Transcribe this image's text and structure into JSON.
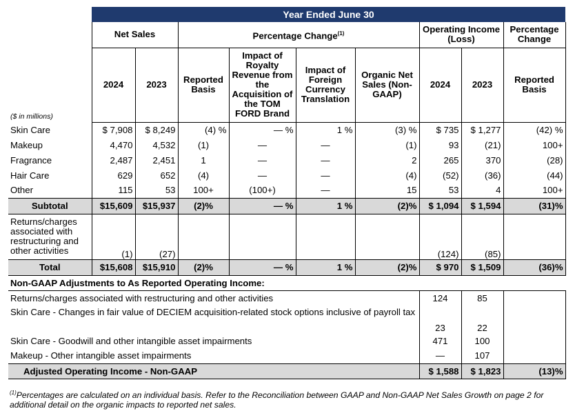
{
  "header": {
    "year_banner": "Year Ended June 30",
    "net_sales": "Net Sales",
    "pct_change": "Percentage Change",
    "pct_change_sup": "(1)",
    "op_income": "Operating Income (Loss)",
    "pct_change_right": "Percentage Change",
    "units": "($ in millions)",
    "col_2024": "2024",
    "col_2023": "2023",
    "reported_basis": "Reported Basis",
    "impact_royalty": "Impact of Royalty Revenue from the Acquisition of the TOM FORD Brand",
    "impact_fx": "Impact of Foreign Currency Translation",
    "organic": "Organic Net Sales (Non-GAAP)",
    "op_2024": "2024",
    "op_2023": "2023",
    "reported_basis_right": "Reported Basis"
  },
  "rows": [
    {
      "label": "Skin Care",
      "ns24": "$ 7,908",
      "ns23": "$ 8,249",
      "rep": "(4) %",
      "roy": "— %",
      "fx": "1 %",
      "org": "(3) %",
      "oi24": "$ 735",
      "oi23": "$ 1,277",
      "pc": "(42) %"
    },
    {
      "label": "Makeup",
      "ns24": "4,470",
      "ns23": "4,532",
      "rep": "(1)",
      "roy": "—",
      "fx": "—",
      "org": "(1)",
      "oi24": "93",
      "oi23": "(21)",
      "pc": "100+"
    },
    {
      "label": "Fragrance",
      "ns24": "2,487",
      "ns23": "2,451",
      "rep": "1",
      "roy": "—",
      "fx": "—",
      "org": "2",
      "oi24": "265",
      "oi23": "370",
      "pc": "(28)"
    },
    {
      "label": "Hair Care",
      "ns24": "629",
      "ns23": "652",
      "rep": "(4)",
      "roy": "—",
      "fx": "—",
      "org": "(4)",
      "oi24": "(52)",
      "oi23": "(36)",
      "pc": "(44)"
    },
    {
      "label": "Other",
      "ns24": "115",
      "ns23": "53",
      "rep": "100+",
      "roy": "(100+)",
      "fx": "—",
      "org": "15",
      "oi24": "53",
      "oi23": "4",
      "pc": "100+"
    }
  ],
  "subtotal": {
    "label": "Subtotal",
    "ns24": "$15,609",
    "ns23": "$15,937",
    "rep": "(2)%",
    "roy": "— %",
    "fx": "1 %",
    "org": "(2)%",
    "oi24": "$ 1,094",
    "oi23": "$ 1,594",
    "pc": "(31)%"
  },
  "returns": {
    "label": "Returns/charges associated with restructuring and other activities",
    "ns24": "(1)",
    "ns23": "(27)",
    "oi24": "(124)",
    "oi23": "(85)"
  },
  "total": {
    "label": "Total",
    "ns24": "$15,608",
    "ns23": "$15,910",
    "rep": "(2)%",
    "roy": "— %",
    "fx": "1 %",
    "org": "(2)%",
    "oi24": "$ 970",
    "oi23": "$ 1,509",
    "pc": "(36)%"
  },
  "nongaap": {
    "title": "Non-GAAP Adjustments to As Reported Operating Income:",
    "items": [
      {
        "label": "Returns/charges associated with restructuring and other activities",
        "oi24": "124",
        "oi23": "85"
      },
      {
        "label": "Skin Care - Changes in fair value of DECIEM acquisition-related stock options inclusive of payroll tax",
        "oi24": "23",
        "oi23": "22"
      },
      {
        "label": "Skin Care - Goodwill and other intangible asset impairments",
        "oi24": "471",
        "oi23": "100"
      },
      {
        "label": "Makeup - Other intangible asset impairments",
        "oi24": "—",
        "oi23": "107"
      }
    ]
  },
  "adjusted": {
    "label": "Adjusted Operating Income - Non-GAAP",
    "oi24": "$ 1,588",
    "oi23": "$ 1,823",
    "pc": "(13)%"
  },
  "footnote": {
    "sup": "(1)",
    "text": "Percentages are calculated on an individual basis. Refer to the Reconciliation between GAAP and Non-GAAP Net Sales Growth on page 2 for additional detail on the organic impacts to reported net sales."
  },
  "colors": {
    "banner": "#1f3a6e",
    "shade": "#d9d9d9"
  }
}
